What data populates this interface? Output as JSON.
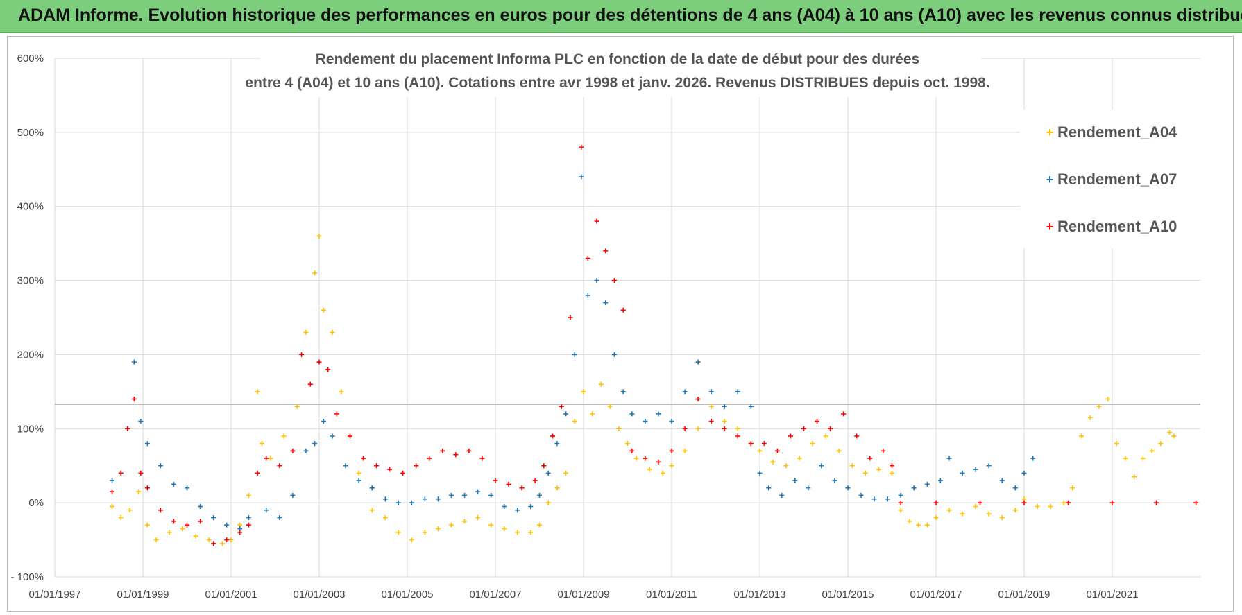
{
  "banner": {
    "title": "ADAM Informe. Evolution historique des performances en euros pour des détentions de 4 ans (A04) à 10 ans (A10) avec les revenus connus distribués"
  },
  "colors": {
    "banner_bg": "#7ccd7c",
    "A04": "#ffc000",
    "A07": "#1f77b4",
    "A10": "#ff0000"
  },
  "chart_data": {
    "type": "scatter",
    "title_line1": "Rendement du placement Informa PLC en fonction de la date de début pour des durées",
    "title_line2": "entre 4 (A04) et 10 ans (A10).  Cotations entre avr 1998 et janv. 2026.  Revenus DISTRIBUES depuis oct. 1998.",
    "xlabel": "",
    "ylabel": "",
    "xlim": [
      1997.0,
      2023.0
    ],
    "ylim": [
      -100,
      600
    ],
    "y_ticks": [
      -100,
      0,
      100,
      200,
      300,
      400,
      500,
      600
    ],
    "y_tick_labels": [
      "- 100%",
      "0%",
      "100%",
      "200%",
      "300%",
      "400%",
      "500%",
      "600%"
    ],
    "x_ticks": [
      1997,
      1999,
      2001,
      2003,
      2005,
      2007,
      2009,
      2011,
      2013,
      2015,
      2017,
      2019,
      2021
    ],
    "x_tick_labels": [
      "01/01/1997",
      "01/01/1999",
      "01/01/2001",
      "01/01/2003",
      "01/01/2005",
      "01/01/2007",
      "01/01/2009",
      "01/01/2011",
      "01/01/2013",
      "01/01/2015",
      "01/01/2017",
      "01/01/2019",
      "01/01/2021"
    ],
    "reference_line_y": 133,
    "grid": true,
    "legend_position": "top-right",
    "marker": "+",
    "series": [
      {
        "name": "Rendement_A04",
        "color": "#ffc000",
        "points": [
          [
            1998.3,
            -5
          ],
          [
            1998.5,
            -20
          ],
          [
            1998.7,
            -10
          ],
          [
            1998.9,
            15
          ],
          [
            1999.1,
            -30
          ],
          [
            1999.3,
            -50
          ],
          [
            1999.6,
            -40
          ],
          [
            1999.9,
            -35
          ],
          [
            2000.2,
            -45
          ],
          [
            2000.5,
            -50
          ],
          [
            2000.8,
            -55
          ],
          [
            2001.0,
            -50
          ],
          [
            2001.2,
            -30
          ],
          [
            2001.4,
            10
          ],
          [
            2001.6,
            150
          ],
          [
            2001.7,
            80
          ],
          [
            2001.9,
            60
          ],
          [
            2002.2,
            90
          ],
          [
            2002.5,
            130
          ],
          [
            2002.7,
            230
          ],
          [
            2002.9,
            310
          ],
          [
            2003.0,
            360
          ],
          [
            2003.1,
            260
          ],
          [
            2003.3,
            230
          ],
          [
            2003.5,
            150
          ],
          [
            2003.7,
            90
          ],
          [
            2003.9,
            40
          ],
          [
            2004.2,
            -10
          ],
          [
            2004.5,
            -20
          ],
          [
            2004.8,
            -40
          ],
          [
            2005.1,
            -50
          ],
          [
            2005.4,
            -40
          ],
          [
            2005.7,
            -35
          ],
          [
            2006.0,
            -30
          ],
          [
            2006.3,
            -25
          ],
          [
            2006.6,
            -20
          ],
          [
            2006.9,
            -30
          ],
          [
            2007.2,
            -35
          ],
          [
            2007.5,
            -40
          ],
          [
            2007.8,
            -40
          ],
          [
            2008.0,
            -30
          ],
          [
            2008.2,
            0
          ],
          [
            2008.4,
            20
          ],
          [
            2008.6,
            40
          ],
          [
            2008.8,
            110
          ],
          [
            2009.0,
            150
          ],
          [
            2009.2,
            120
          ],
          [
            2009.4,
            160
          ],
          [
            2009.6,
            130
          ],
          [
            2009.8,
            100
          ],
          [
            2010.0,
            80
          ],
          [
            2010.2,
            60
          ],
          [
            2010.5,
            45
          ],
          [
            2010.8,
            40
          ],
          [
            2011.0,
            50
          ],
          [
            2011.3,
            70
          ],
          [
            2011.6,
            100
          ],
          [
            2011.9,
            130
          ],
          [
            2012.2,
            110
          ],
          [
            2012.5,
            100
          ],
          [
            2012.8,
            80
          ],
          [
            2013.0,
            70
          ],
          [
            2013.3,
            55
          ],
          [
            2013.6,
            50
          ],
          [
            2013.9,
            60
          ],
          [
            2014.2,
            80
          ],
          [
            2014.5,
            90
          ],
          [
            2014.8,
            70
          ],
          [
            2015.1,
            50
          ],
          [
            2015.4,
            40
          ],
          [
            2015.7,
            45
          ],
          [
            2016.0,
            40
          ],
          [
            2016.2,
            -10
          ],
          [
            2016.4,
            -25
          ],
          [
            2016.6,
            -30
          ],
          [
            2016.8,
            -30
          ],
          [
            2017.0,
            -20
          ],
          [
            2017.3,
            -10
          ],
          [
            2017.6,
            -15
          ],
          [
            2017.9,
            -5
          ],
          [
            2018.2,
            -15
          ],
          [
            2018.5,
            -20
          ],
          [
            2018.8,
            -10
          ],
          [
            2019.0,
            5
          ],
          [
            2019.3,
            -5
          ],
          [
            2019.6,
            -5
          ],
          [
            2019.9,
            0
          ],
          [
            2020.1,
            20
          ],
          [
            2020.3,
            90
          ],
          [
            2020.5,
            115
          ],
          [
            2020.7,
            130
          ],
          [
            2020.9,
            140
          ],
          [
            2021.1,
            80
          ],
          [
            2021.3,
            60
          ],
          [
            2021.5,
            35
          ],
          [
            2021.7,
            60
          ],
          [
            2021.9,
            70
          ],
          [
            2022.1,
            80
          ],
          [
            2022.3,
            95
          ],
          [
            2022.4,
            90
          ]
        ]
      },
      {
        "name": "Rendement_A07",
        "color": "#1f77b4",
        "points": [
          [
            1998.3,
            30
          ],
          [
            1998.5,
            40
          ],
          [
            1998.65,
            100
          ],
          [
            1998.8,
            190
          ],
          [
            1998.95,
            110
          ],
          [
            1999.1,
            80
          ],
          [
            1999.4,
            50
          ],
          [
            1999.7,
            25
          ],
          [
            2000.0,
            20
          ],
          [
            2000.3,
            -5
          ],
          [
            2000.6,
            -20
          ],
          [
            2000.9,
            -30
          ],
          [
            2001.2,
            -35
          ],
          [
            2001.4,
            -20
          ],
          [
            2001.6,
            40
          ],
          [
            2001.8,
            -10
          ],
          [
            2002.1,
            -20
          ],
          [
            2002.4,
            10
          ],
          [
            2002.7,
            70
          ],
          [
            2002.9,
            80
          ],
          [
            2003.1,
            110
          ],
          [
            2003.3,
            90
          ],
          [
            2003.6,
            50
          ],
          [
            2003.9,
            30
          ],
          [
            2004.2,
            20
          ],
          [
            2004.5,
            5
          ],
          [
            2004.8,
            0
          ],
          [
            2005.1,
            0
          ],
          [
            2005.4,
            5
          ],
          [
            2005.7,
            5
          ],
          [
            2006.0,
            10
          ],
          [
            2006.3,
            10
          ],
          [
            2006.6,
            15
          ],
          [
            2006.9,
            10
          ],
          [
            2007.2,
            -5
          ],
          [
            2007.5,
            -10
          ],
          [
            2007.8,
            -5
          ],
          [
            2008.0,
            10
          ],
          [
            2008.2,
            40
          ],
          [
            2008.4,
            80
          ],
          [
            2008.6,
            120
          ],
          [
            2008.8,
            200
          ],
          [
            2008.95,
            440
          ],
          [
            2009.1,
            280
          ],
          [
            2009.3,
            300
          ],
          [
            2009.5,
            270
          ],
          [
            2009.7,
            200
          ],
          [
            2009.9,
            150
          ],
          [
            2010.1,
            120
          ],
          [
            2010.4,
            110
          ],
          [
            2010.7,
            120
          ],
          [
            2011.0,
            110
          ],
          [
            2011.3,
            150
          ],
          [
            2011.6,
            190
          ],
          [
            2011.9,
            150
          ],
          [
            2012.2,
            130
          ],
          [
            2012.5,
            150
          ],
          [
            2012.8,
            130
          ],
          [
            2013.0,
            40
          ],
          [
            2013.2,
            20
          ],
          [
            2013.5,
            10
          ],
          [
            2013.8,
            30
          ],
          [
            2014.1,
            20
          ],
          [
            2014.4,
            50
          ],
          [
            2014.7,
            30
          ],
          [
            2015.0,
            20
          ],
          [
            2015.3,
            10
          ],
          [
            2015.6,
            5
          ],
          [
            2015.9,
            5
          ],
          [
            2016.2,
            10
          ],
          [
            2016.5,
            20
          ],
          [
            2016.8,
            25
          ],
          [
            2017.1,
            30
          ],
          [
            2017.3,
            60
          ],
          [
            2017.6,
            40
          ],
          [
            2017.9,
            45
          ],
          [
            2018.2,
            50
          ],
          [
            2018.5,
            30
          ],
          [
            2018.8,
            20
          ],
          [
            2019.0,
            40
          ],
          [
            2019.2,
            60
          ]
        ]
      },
      {
        "name": "Rendement_A10",
        "color": "#ff0000",
        "points": [
          [
            1998.3,
            15
          ],
          [
            1998.5,
            40
          ],
          [
            1998.65,
            100
          ],
          [
            1998.8,
            140
          ],
          [
            1998.95,
            40
          ],
          [
            1999.1,
            20
          ],
          [
            1999.4,
            -10
          ],
          [
            1999.7,
            -25
          ],
          [
            2000.0,
            -30
          ],
          [
            2000.3,
            -25
          ],
          [
            2000.6,
            -55
          ],
          [
            2000.9,
            -50
          ],
          [
            2001.2,
            -40
          ],
          [
            2001.4,
            -30
          ],
          [
            2001.6,
            40
          ],
          [
            2001.8,
            60
          ],
          [
            2002.1,
            50
          ],
          [
            2002.4,
            70
          ],
          [
            2002.6,
            200
          ],
          [
            2002.8,
            160
          ],
          [
            2003.0,
            190
          ],
          [
            2003.2,
            180
          ],
          [
            2003.4,
            120
          ],
          [
            2003.7,
            90
          ],
          [
            2004.0,
            60
          ],
          [
            2004.3,
            50
          ],
          [
            2004.6,
            45
          ],
          [
            2004.9,
            40
          ],
          [
            2005.2,
            50
          ],
          [
            2005.5,
            60
          ],
          [
            2005.8,
            70
          ],
          [
            2006.1,
            65
          ],
          [
            2006.4,
            70
          ],
          [
            2006.7,
            60
          ],
          [
            2007.0,
            30
          ],
          [
            2007.3,
            25
          ],
          [
            2007.6,
            20
          ],
          [
            2007.9,
            30
          ],
          [
            2008.1,
            50
          ],
          [
            2008.3,
            90
          ],
          [
            2008.5,
            130
          ],
          [
            2008.7,
            250
          ],
          [
            2008.95,
            480
          ],
          [
            2009.1,
            330
          ],
          [
            2009.3,
            380
          ],
          [
            2009.5,
            340
          ],
          [
            2009.7,
            300
          ],
          [
            2009.9,
            260
          ],
          [
            2010.1,
            70
          ],
          [
            2010.4,
            60
          ],
          [
            2010.7,
            55
          ],
          [
            2011.0,
            70
          ],
          [
            2011.3,
            100
          ],
          [
            2011.6,
            140
          ],
          [
            2011.9,
            110
          ],
          [
            2012.2,
            100
          ],
          [
            2012.5,
            90
          ],
          [
            2012.8,
            80
          ],
          [
            2013.1,
            80
          ],
          [
            2013.4,
            70
          ],
          [
            2013.7,
            90
          ],
          [
            2014.0,
            100
          ],
          [
            2014.3,
            110
          ],
          [
            2014.6,
            100
          ],
          [
            2014.9,
            120
          ],
          [
            2015.2,
            90
          ],
          [
            2015.5,
            60
          ],
          [
            2015.8,
            70
          ],
          [
            2016.0,
            50
          ],
          [
            2016.2,
            0
          ],
          [
            2017.0,
            0
          ],
          [
            2018.0,
            0
          ],
          [
            2019.0,
            0
          ],
          [
            2020.0,
            0
          ],
          [
            2021.0,
            0
          ],
          [
            2022.0,
            0
          ],
          [
            2022.9,
            0
          ]
        ]
      }
    ]
  }
}
